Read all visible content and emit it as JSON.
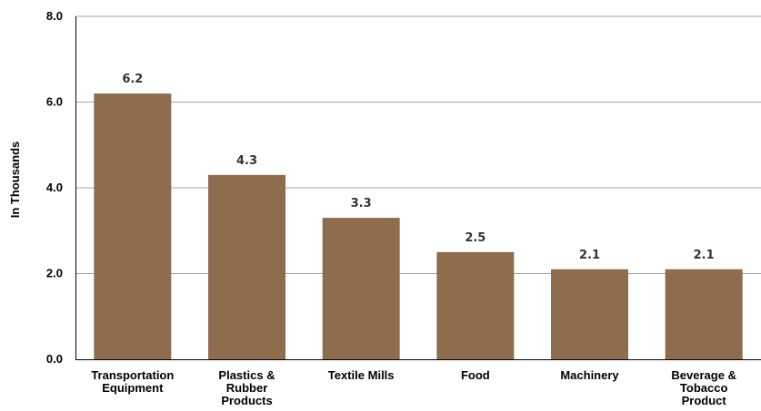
{
  "chart_data": {
    "type": "bar",
    "categories": [
      [
        "Transportation",
        "Equipment"
      ],
      [
        "Plastics &",
        "Rubber",
        "Products"
      ],
      [
        "Textile Mills"
      ],
      [
        "Food"
      ],
      [
        "Machinery"
      ],
      [
        "Beverage &",
        "Tobacco",
        "Product"
      ]
    ],
    "values": [
      6.2,
      4.3,
      3.3,
      2.5,
      2.1,
      2.1
    ],
    "value_labels": [
      "6.2",
      "4.3",
      "3.3",
      "2.5",
      "2.1",
      "2.1"
    ],
    "ylabel": "In Thousands",
    "ylim": [
      0,
      8
    ],
    "yticks": [
      "0.0",
      "2.0",
      "4.0",
      "6.0",
      "8.0"
    ],
    "grid": true,
    "bar_color": "#8e6d4f",
    "grid_color": "#a6a6a6"
  }
}
